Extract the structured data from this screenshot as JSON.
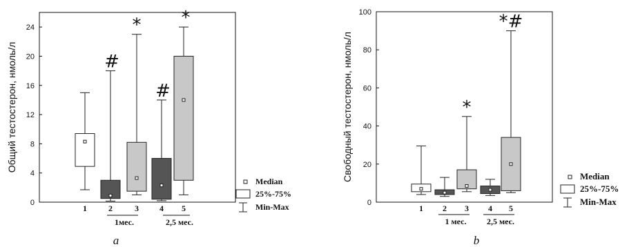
{
  "chart_data": [
    {
      "type": "box",
      "panel_label": "a",
      "ylabel": "Общий тестостерон, нмоль/л",
      "ylim": [
        0,
        26
      ],
      "yticks": [
        0,
        4,
        8,
        12,
        16,
        20,
        24
      ],
      "categories": [
        "1",
        "2",
        "3",
        "4",
        "5"
      ],
      "groups": [
        {
          "label": "1мес.",
          "categories": [
            "2",
            "3"
          ]
        },
        {
          "label": "2,5 мес.",
          "categories": [
            "4",
            "5"
          ]
        }
      ],
      "boxes": [
        {
          "category": "1",
          "min": 1.7,
          "q1": 4.9,
          "median": 8.3,
          "q3": 9.4,
          "max": 15.0,
          "fill": "#ffffff",
          "marker": ""
        },
        {
          "category": "2",
          "min": 0.15,
          "q1": 0.5,
          "median": 0.9,
          "q3": 3.0,
          "max": 18.0,
          "fill": "#555555",
          "marker": "#"
        },
        {
          "category": "3",
          "min": 1.0,
          "q1": 1.5,
          "median": 3.3,
          "q3": 8.2,
          "max": 23.0,
          "fill": "#c8c8c8",
          "marker": "*"
        },
        {
          "category": "4",
          "min": 0.2,
          "q1": 0.4,
          "median": 2.3,
          "q3": 6.0,
          "max": 14.0,
          "fill": "#555555",
          "marker": "#"
        },
        {
          "category": "5",
          "min": 1.0,
          "q1": 3.0,
          "median": 14.0,
          "q3": 20.0,
          "max": 24.0,
          "fill": "#c8c8c8",
          "marker": "*"
        }
      ],
      "legend": {
        "median": "Median",
        "box": "25%-75%",
        "whisker": "Min-Max"
      }
    },
    {
      "type": "box",
      "panel_label": "b",
      "ylabel": "Свободный тестостерон, нмоль/л",
      "ylim": [
        0,
        100
      ],
      "yticks": [
        0,
        20,
        40,
        60,
        80,
        100
      ],
      "categories": [
        "1",
        "2",
        "3",
        "4",
        "5"
      ],
      "groups": [
        {
          "label": "1 мес.",
          "categories": [
            "2",
            "3"
          ]
        },
        {
          "label": "2,5 мес.",
          "categories": [
            "4",
            "5"
          ]
        }
      ],
      "boxes": [
        {
          "category": "1",
          "min": 4.0,
          "q1": 5.5,
          "median": 7.0,
          "q3": 9.5,
          "max": 29.5,
          "fill": "#ffffff",
          "marker": ""
        },
        {
          "category": "2",
          "min": 3.0,
          "q1": 4.0,
          "median": 5.0,
          "q3": 6.5,
          "max": 13.0,
          "fill": "#555555",
          "marker": ""
        },
        {
          "category": "3",
          "min": 5.5,
          "q1": 7.0,
          "median": 8.5,
          "q3": 17.0,
          "max": 45.0,
          "fill": "#c8c8c8",
          "marker": "*"
        },
        {
          "category": "4",
          "min": 3.5,
          "q1": 4.5,
          "median": 6.5,
          "q3": 8.5,
          "max": 12.0,
          "fill": "#555555",
          "marker": ""
        },
        {
          "category": "5",
          "min": 5.0,
          "q1": 6.0,
          "median": 20.0,
          "q3": 34.0,
          "max": 90.0,
          "fill": "#c8c8c8",
          "marker": "*#"
        }
      ],
      "legend": {
        "median": "Median",
        "box": "25%-75%",
        "whisker": "Min-Max"
      }
    }
  ]
}
